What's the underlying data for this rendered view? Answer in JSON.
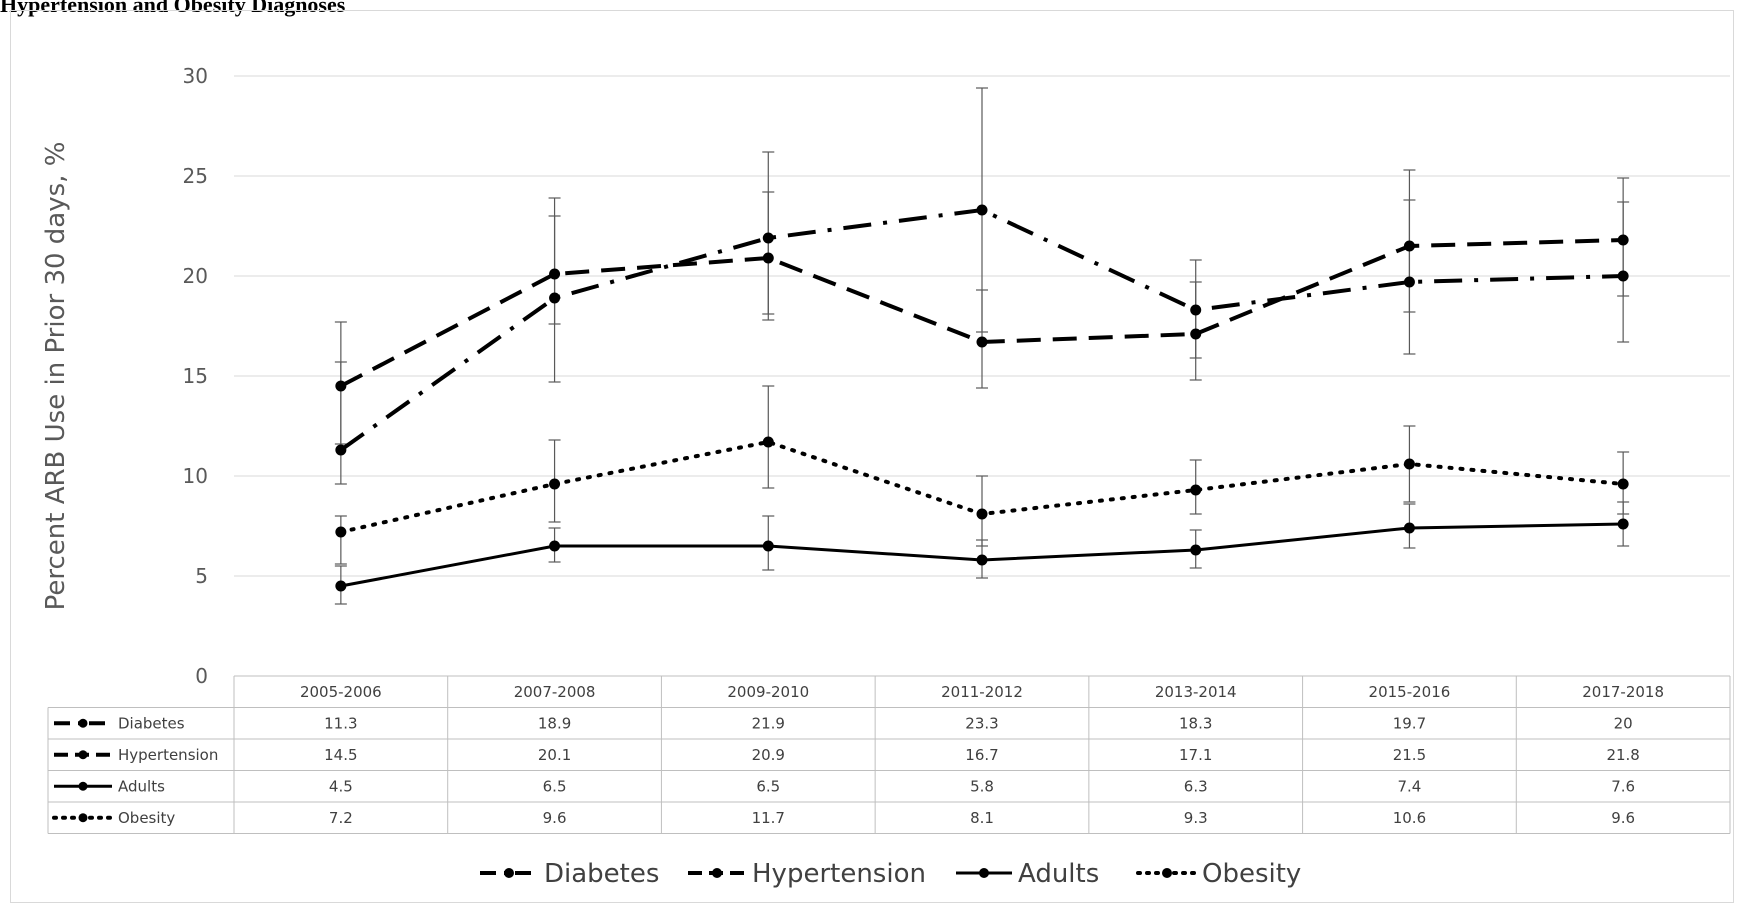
{
  "page_title": "Hypertension and Obesity Diagnoses",
  "chart_data": {
    "type": "line",
    "title": "",
    "xlabel": "",
    "ylabel": "Percent ARB Use in Prior 30 days, %",
    "ylim": [
      0,
      30
    ],
    "yticks": [
      0,
      5,
      10,
      15,
      20,
      25,
      30
    ],
    "grid": true,
    "legend_position": "bottom",
    "data_table": true,
    "categories": [
      "2005-2006",
      "2007-2008",
      "2009-2010",
      "2011-2012",
      "2013-2014",
      "2015-2016",
      "2017-2018"
    ],
    "series": [
      {
        "name": "Diabetes",
        "style": "dash-dot",
        "color": "#000000",
        "values": [
          11.3,
          18.9,
          21.9,
          23.3,
          18.3,
          19.7,
          20
        ],
        "labels": [
          "11.3",
          "18.9",
          "21.9",
          "23.3",
          "18.3",
          "19.7",
          "20"
        ],
        "error_low": [
          9.6,
          14.7,
          17.8,
          17.2,
          15.9,
          16.1,
          16.7
        ],
        "error_high": [
          15.7,
          23.0,
          26.2,
          29.4,
          20.8,
          23.8,
          23.7
        ]
      },
      {
        "name": "Hypertension",
        "style": "dash",
        "color": "#000000",
        "values": [
          14.5,
          20.1,
          20.9,
          16.7,
          17.1,
          21.5,
          21.8
        ],
        "labels": [
          "14.5",
          "20.1",
          "20.9",
          "16.7",
          "17.1",
          "21.5",
          "21.8"
        ],
        "error_low": [
          11.6,
          17.6,
          18.1,
          14.4,
          14.8,
          18.2,
          19.0
        ],
        "error_high": [
          17.7,
          23.9,
          24.2,
          19.3,
          19.7,
          25.3,
          24.9
        ]
      },
      {
        "name": "Adults",
        "style": "solid",
        "color": "#000000",
        "values": [
          4.5,
          6.5,
          6.5,
          5.8,
          6.3,
          7.4,
          7.6
        ],
        "labels": [
          "4.5",
          "6.5",
          "6.5",
          "5.8",
          "6.3",
          "7.4",
          "7.6"
        ],
        "error_low": [
          3.6,
          5.7,
          5.3,
          4.9,
          5.4,
          6.4,
          6.5
        ],
        "error_high": [
          5.5,
          7.4,
          8.0,
          6.8,
          7.3,
          8.6,
          8.7
        ]
      },
      {
        "name": "Obesity",
        "style": "dot",
        "color": "#000000",
        "values": [
          7.2,
          9.6,
          11.7,
          8.1,
          9.3,
          10.6,
          9.6
        ],
        "labels": [
          "7.2",
          "9.6",
          "11.7",
          "8.1",
          "9.3",
          "10.6",
          "9.6"
        ],
        "error_low": [
          5.6,
          7.7,
          9.4,
          6.5,
          8.1,
          8.7,
          8.1
        ],
        "error_high": [
          8.0,
          11.8,
          14.5,
          10.0,
          10.8,
          12.5,
          11.2
        ]
      }
    ]
  }
}
